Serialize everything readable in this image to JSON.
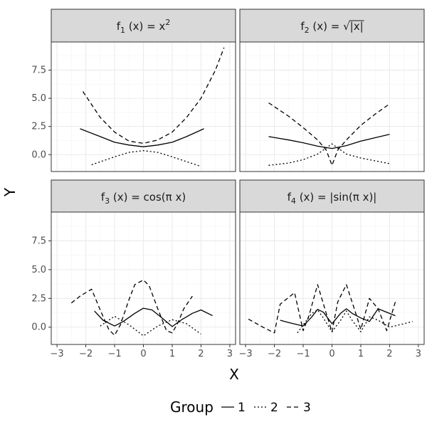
{
  "chart_data": {
    "type": "line",
    "xlabel": "X",
    "ylabel": "Y",
    "xlim": [
      -3.2,
      3.2
    ],
    "ylim": [
      -1.5,
      10.0
    ],
    "x_ticks": [
      -3,
      -2,
      -1,
      0,
      1,
      2,
      3
    ],
    "y_ticks": [
      0.0,
      2.5,
      5.0,
      7.5
    ],
    "x_tick_labels": [
      "−3",
      "−2",
      "−1",
      "0",
      "1",
      "2",
      "3"
    ],
    "y_tick_labels": [
      "0.0",
      "2.5",
      "5.0",
      "7.5"
    ],
    "grid": true,
    "legend": {
      "title": "Group",
      "position": "bottom",
      "entries": [
        {
          "label": "1",
          "linetype": "solid"
        },
        {
          "label": "2",
          "linetype": "dotted"
        },
        {
          "label": "3",
          "linetype": "dashed"
        }
      ]
    },
    "panels": [
      {
        "title_main": "f",
        "title_sub": "1",
        "title_rest": " (x) = x",
        "title_sup": "2",
        "title_tail": "",
        "series": [
          {
            "name": "1",
            "x": [
              -2.2,
              -1.5,
              -1.0,
              -0.5,
              0.0,
              0.5,
              1.0,
              1.5,
              2.1
            ],
            "y": [
              2.3,
              1.6,
              1.1,
              0.85,
              0.7,
              0.85,
              1.1,
              1.6,
              2.3
            ]
          },
          {
            "name": "2",
            "x": [
              -1.8,
              -1.0,
              -0.5,
              0.0,
              0.5,
              1.0,
              2.0
            ],
            "y": [
              -0.9,
              -0.2,
              0.2,
              0.35,
              0.2,
              -0.2,
              -1.05
            ]
          },
          {
            "name": "3",
            "x": [
              -2.1,
              -1.5,
              -1.0,
              -0.5,
              0.0,
              0.5,
              1.0,
              1.5,
              2.0,
              2.5,
              2.8
            ],
            "y": [
              5.6,
              3.3,
              2.0,
              1.2,
              1.0,
              1.3,
              2.0,
              3.3,
              5.0,
              7.5,
              9.5
            ]
          }
        ]
      },
      {
        "title_main": "f",
        "title_sub": "2",
        "title_rest": " (x) = ",
        "title_sup": "",
        "title_tail": "|x|",
        "has_sqrt": true,
        "series": [
          {
            "name": "1",
            "x": [
              -2.2,
              -1.5,
              -1.0,
              -0.5,
              0.0,
              0.5,
              1.0,
              1.5,
              2.0
            ],
            "y": [
              1.6,
              1.3,
              1.05,
              0.75,
              0.55,
              0.8,
              1.2,
              1.5,
              1.8
            ]
          },
          {
            "name": "2",
            "x": [
              -2.2,
              -1.5,
              -1.0,
              -0.5,
              0.0,
              0.5,
              1.0,
              1.5,
              2.0
            ],
            "y": [
              -0.95,
              -0.75,
              -0.45,
              0.05,
              0.95,
              0.05,
              -0.3,
              -0.55,
              -0.8
            ]
          },
          {
            "name": "3",
            "x": [
              -2.2,
              -1.5,
              -1.0,
              -0.5,
              -0.2,
              0.0,
              0.2,
              0.5,
              1.0,
              1.5,
              2.0
            ],
            "y": [
              4.6,
              3.4,
              2.4,
              1.3,
              0.4,
              -0.95,
              0.4,
              1.3,
              2.6,
              3.6,
              4.5
            ]
          }
        ]
      },
      {
        "title_main": "f",
        "title_sub": "3",
        "title_rest": " (x) = cos(π x)",
        "title_sup": "",
        "title_tail": "",
        "series": [
          {
            "name": "1",
            "x": [
              -1.7,
              -1.4,
              -1.0,
              -0.7,
              -0.3,
              0.0,
              0.3,
              0.6,
              1.0,
              1.3,
              1.7,
              2.0,
              2.4
            ],
            "y": [
              1.4,
              0.6,
              0.1,
              0.5,
              1.2,
              1.65,
              1.5,
              0.9,
              0.05,
              0.6,
              1.2,
              1.5,
              1.0
            ]
          },
          {
            "name": "2",
            "x": [
              -1.5,
              -1.0,
              -0.5,
              0.0,
              0.5,
              1.0,
              1.5,
              2.0
            ],
            "y": [
              0.1,
              0.95,
              0.2,
              -0.75,
              0.1,
              0.65,
              0.3,
              -0.6
            ]
          },
          {
            "name": "3",
            "x": [
              -2.5,
              -2.2,
              -1.8,
              -1.5,
              -1.2,
              -1.0,
              -0.8,
              -0.5,
              -0.3,
              0.0,
              0.2,
              0.5,
              0.8,
              1.0,
              1.2,
              1.4,
              1.7
            ],
            "y": [
              2.1,
              2.7,
              3.3,
              1.5,
              -0.2,
              -0.7,
              0.2,
              2.4,
              3.7,
              4.1,
              3.6,
              1.6,
              -0.3,
              -0.5,
              0.4,
              1.6,
              2.7
            ]
          }
        ]
      },
      {
        "title_main": "f",
        "title_sub": "4",
        "title_rest": " (x) = |sin(π x)|",
        "title_sup": "",
        "title_tail": "",
        "series": [
          {
            "name": "1",
            "x": [
              -1.8,
              -1.5,
              -1.0,
              -0.7,
              -0.5,
              -0.3,
              0.0,
              0.3,
              0.5,
              0.7,
              1.0,
              1.3,
              1.6,
              2.2
            ],
            "y": [
              0.6,
              0.4,
              0.1,
              0.9,
              1.55,
              1.3,
              0.3,
              1.2,
              1.6,
              1.2,
              0.8,
              0.5,
              1.6,
              1.0
            ]
          },
          {
            "name": "2",
            "x": [
              -1.2,
              -1.0,
              -0.7,
              -0.5,
              -0.3,
              0.0,
              0.3,
              0.5,
              0.7,
              1.0,
              1.3,
              1.6,
              2.0,
              2.5,
              2.8
            ],
            "y": [
              -0.5,
              0.2,
              1.2,
              1.5,
              0.8,
              -0.4,
              0.6,
              1.4,
              0.6,
              -0.4,
              0.9,
              0.6,
              0.0,
              0.3,
              0.5
            ]
          },
          {
            "name": "3",
            "x": [
              -2.9,
              -2.4,
              -2.0,
              -1.8,
              -1.3,
              -1.0,
              -0.8,
              -0.5,
              -0.2,
              0.0,
              0.2,
              0.5,
              0.8,
              1.0,
              1.3,
              1.6,
              1.9,
              2.2
            ],
            "y": [
              0.7,
              0.0,
              -0.5,
              2.0,
              3.0,
              -0.3,
              1.0,
              3.7,
              1.2,
              -0.4,
              2.2,
              3.7,
              1.4,
              -0.2,
              2.5,
              1.6,
              -0.3,
              2.2
            ]
          }
        ]
      }
    ]
  }
}
